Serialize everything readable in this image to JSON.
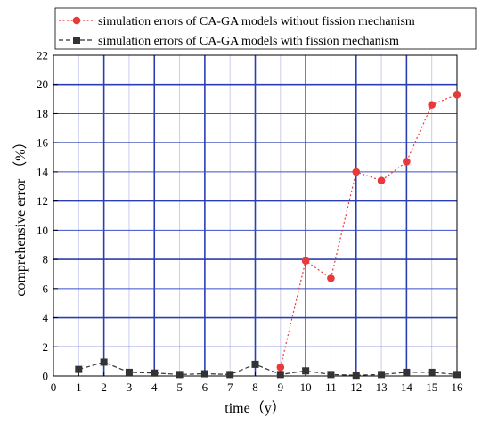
{
  "chart_data": {
    "type": "line",
    "title": "",
    "xlabel": "time（y）",
    "ylabel": "comprehensive error （%）",
    "xlim": [
      0,
      16
    ],
    "ylim": [
      0,
      22
    ],
    "x_ticks": [
      0,
      1,
      2,
      3,
      4,
      5,
      6,
      7,
      8,
      9,
      10,
      11,
      12,
      13,
      14,
      15,
      16
    ],
    "y_ticks": [
      0,
      2,
      4,
      6,
      8,
      10,
      12,
      14,
      16,
      18,
      20,
      22
    ],
    "grid": true,
    "legend_position": "top",
    "series": [
      {
        "name": "simulation errors of CA-GA models without fission mechanism",
        "color": "#e83a3a",
        "marker": "circle",
        "line": "dotted",
        "x": [
          9,
          10,
          11,
          12,
          13,
          14,
          15,
          16
        ],
        "values": [
          0.6,
          7.9,
          6.7,
          14.0,
          13.4,
          14.7,
          18.6,
          19.3
        ]
      },
      {
        "name": "simulation errors of CA-GA models with fission mechanism",
        "color": "#333333",
        "marker": "square",
        "line": "dashed",
        "x": [
          1,
          2,
          3,
          4,
          5,
          6,
          7,
          8,
          9,
          10,
          11,
          12,
          13,
          14,
          15,
          16
        ],
        "values": [
          0.45,
          0.95,
          0.25,
          0.2,
          0.1,
          0.15,
          0.1,
          0.8,
          0.1,
          0.35,
          0.1,
          0.05,
          0.1,
          0.25,
          0.25,
          0.1
        ]
      }
    ]
  }
}
